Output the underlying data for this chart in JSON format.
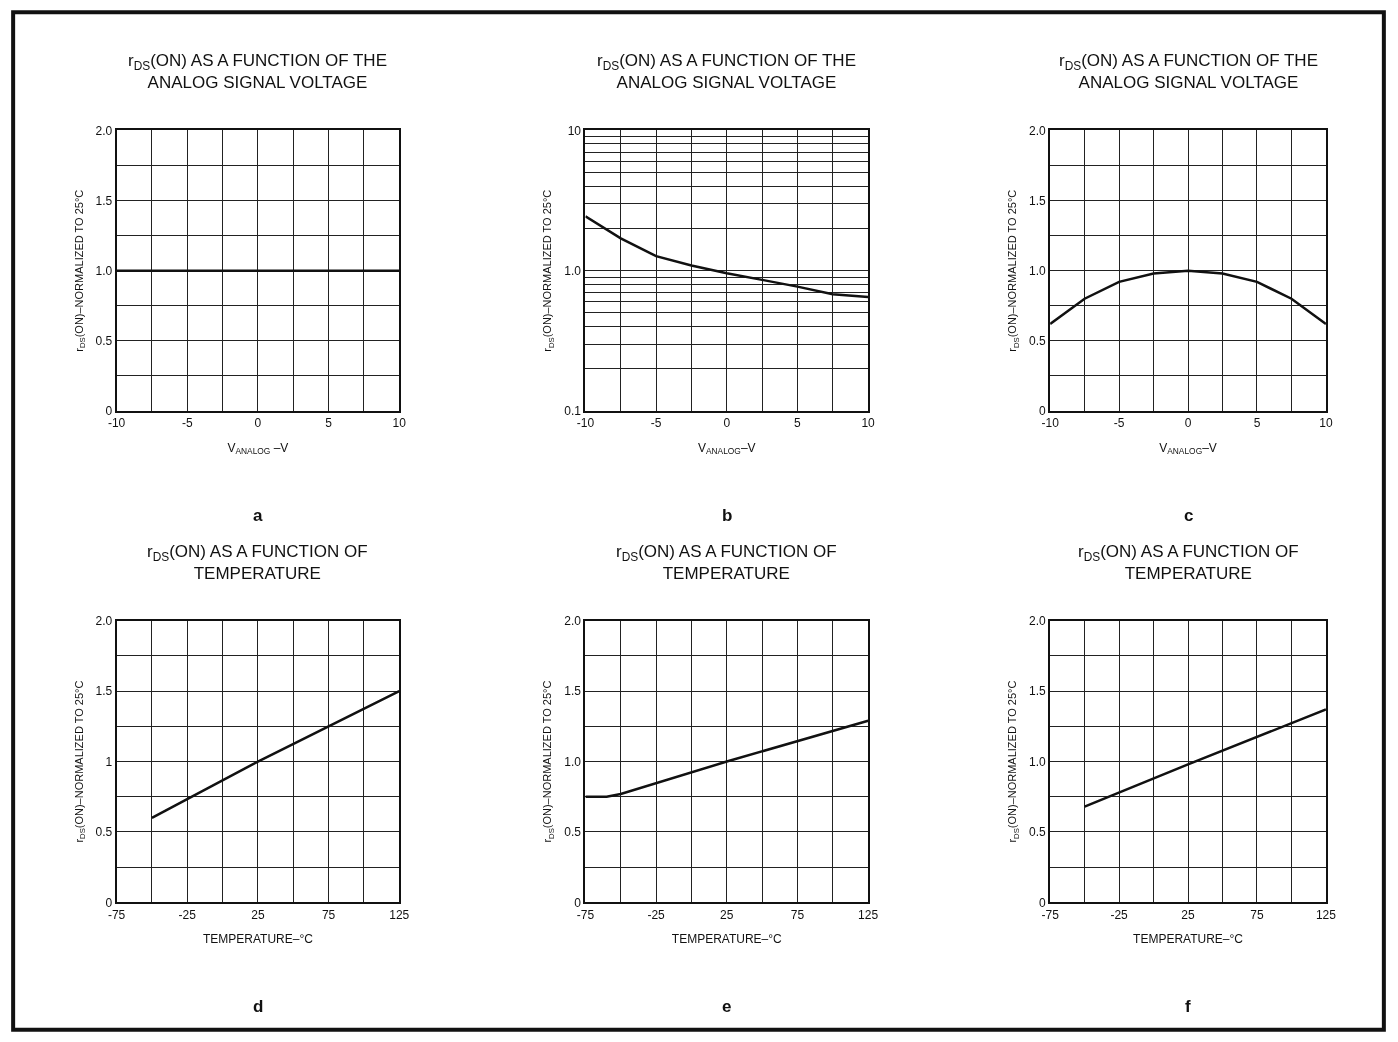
{
  "chart_data": [
    {
      "type": "line",
      "title": "r$_{DS}$(ON) AS A FUNCTION OF THE\nANALOG SIGNAL VOLTAGE",
      "xlabel": "V$_{ANALOG}$ –V",
      "ylabel": "r$_{DS}$(ON)–NORMALIZED TO 25°C",
      "annotations": [
        "a"
      ],
      "series": [
        {
          "color": "#111111",
          "x": [
            -10,
            10
          ],
          "values": [
            1.0,
            1.0
          ]
        }
      ],
      "xlim": [
        -10,
        10
      ],
      "xticks": [
        -10,
        {
          "value": -7.5,
          "label": null
        },
        -5,
        {
          "value": -2.5,
          "label": null
        },
        0,
        {
          "value": 2.5,
          "label": null
        },
        5,
        {
          "value": 7.5,
          "label": null
        },
        10
      ],
      "ylim": [
        0,
        2
      ],
      "yticks": [
        0,
        {
          "value": 0.25,
          "label": null
        },
        0.5,
        {
          "value": 0.75,
          "label": null
        },
        {
          "value": 1,
          "label": "1.0"
        },
        {
          "value": 1.25,
          "label": null
        },
        1.5,
        {
          "value": 1.75,
          "label": null
        },
        {
          "value": 2,
          "label": "2.0"
        }
      ],
      "grid": true
    },
    {
      "type": "line",
      "title": "r$_{DS}$(ON) AS A FUNCTION OF THE\nANALOG SIGNAL VOLTAGE",
      "xlabel": "V$_{ANALOG}$–V",
      "ylabel": "r$_{DS}$(ON)–NORMALIZED TO 25°C",
      "annotations": [
        "b"
      ],
      "log": true,
      "series": [
        {
          "color": "#111111",
          "x": [
            -10,
            -7.5,
            -5,
            -2.5,
            0,
            2.5,
            5,
            7.5,
            10
          ],
          "values": [
            2.44,
            1.7,
            1.27,
            1.09,
            0.96,
            0.86,
            0.77,
            0.68,
            0.65
          ]
        }
      ],
      "xlim": [
        -10,
        10
      ],
      "xticks": [
        -10,
        {
          "value": -7.5,
          "label": null
        },
        -5,
        {
          "value": -2.5,
          "label": null
        },
        0,
        {
          "value": 2.5,
          "label": null
        },
        5,
        {
          "value": 7.5,
          "label": null
        },
        10
      ],
      "ylim": [
        0.1,
        10
      ],
      "yticks": [
        0.1,
        {
          "value": 0.2,
          "label": null
        },
        {
          "value": 0.3,
          "label": null
        },
        {
          "value": 0.4,
          "label": null
        },
        {
          "value": 0.5,
          "label": null
        },
        {
          "value": 0.6,
          "label": null
        },
        {
          "value": 0.7,
          "label": null
        },
        {
          "value": 0.8,
          "label": null
        },
        {
          "value": 0.9,
          "label": null
        },
        {
          "value": 1,
          "label": "1.0"
        },
        {
          "value": 2,
          "label": null
        },
        {
          "value": 3,
          "label": null
        },
        {
          "value": 4,
          "label": null
        },
        {
          "value": 5,
          "label": null
        },
        {
          "value": 6,
          "label": null
        },
        {
          "value": 7,
          "label": null
        },
        {
          "value": 8,
          "label": null
        },
        {
          "value": 9,
          "label": null
        },
        10
      ],
      "grid": true
    },
    {
      "type": "line",
      "title": "r$_{DS}$(ON) AS A FUNCTION OF THE\nANALOG SIGNAL VOLTAGE",
      "xlabel": "V$_{ANALOG}$–V",
      "ylabel": "r$_{DS}$(ON)–NORMALIZED TO 25°C",
      "annotations": [
        "c"
      ],
      "series": [
        {
          "color": "#111111",
          "x": [
            -10,
            -7.5,
            -5,
            -2.5,
            0,
            2.5,
            5,
            7.5,
            10
          ],
          "values": [
            0.62,
            0.8,
            0.92,
            0.98,
            1.0,
            0.98,
            0.92,
            0.8,
            0.62
          ]
        }
      ],
      "xlim": [
        -10,
        10
      ],
      "xticks": [
        -10,
        {
          "value": -7.5,
          "label": null
        },
        -5,
        {
          "value": -2.5,
          "label": null
        },
        0,
        {
          "value": 2.5,
          "label": null
        },
        5,
        {
          "value": 7.5,
          "label": null
        },
        10
      ],
      "ylim": [
        0,
        2
      ],
      "yticks": [
        0,
        {
          "value": 0.25,
          "label": null
        },
        0.5,
        {
          "value": 0.75,
          "label": null
        },
        {
          "value": 1,
          "label": "1.0"
        },
        {
          "value": 1.25,
          "label": null
        },
        1.5,
        {
          "value": 1.75,
          "label": null
        },
        {
          "value": 2,
          "label": "2.0"
        }
      ],
      "grid": true
    },
    {
      "type": "line",
      "title": "r$_{DS}$(ON) AS A FUNCTION OF\nTEMPERATURE",
      "xlabel": "TEMPERATURE–°C",
      "ylabel": "r$_{DS}$(ON)–NORMALIZED TO 25°C",
      "annotations": [
        "d"
      ],
      "series": [
        {
          "color": "#111111",
          "x": [
            -50,
            25,
            125
          ],
          "values": [
            0.6,
            1.0,
            1.5
          ]
        }
      ],
      "xlim": [
        -75,
        125
      ],
      "xticks": [
        -75,
        {
          "value": -50,
          "label": null
        },
        -25,
        {
          "value": 0,
          "label": null
        },
        25,
        {
          "value": 50,
          "label": null
        },
        75,
        {
          "value": 100,
          "label": null
        },
        125
      ],
      "ylim": [
        0,
        2
      ],
      "yticks": [
        0,
        {
          "value": 0.25,
          "label": null
        },
        0.5,
        {
          "value": 0.75,
          "label": null
        },
        1,
        {
          "value": 1.25,
          "label": null
        },
        1.5,
        {
          "value": 1.75,
          "label": null
        },
        {
          "value": 2,
          "label": "2.0"
        }
      ],
      "grid": true
    },
    {
      "type": "line",
      "title": "r$_{DS}$(ON) AS A FUNCTION OF\nTEMPERATURE",
      "xlabel": "TEMPERATURE–°C",
      "ylabel": "r$_{DS}$(ON)–NORMALIZED TO 25°C",
      "annotations": [
        "e"
      ],
      "series": [
        {
          "color": "#111111",
          "x": [
            -75,
            -60,
            -50,
            25,
            125
          ],
          "values": [
            0.75,
            0.75,
            0.77,
            1.0,
            1.29
          ]
        }
      ],
      "xlim": [
        -75,
        125
      ],
      "xticks": [
        -75,
        {
          "value": -50,
          "label": null
        },
        -25,
        {
          "value": 0,
          "label": null
        },
        25,
        {
          "value": 50,
          "label": null
        },
        75,
        {
          "value": 100,
          "label": null
        },
        125
      ],
      "ylim": [
        0,
        2
      ],
      "yticks": [
        0,
        {
          "value": 0.25,
          "label": null
        },
        0.5,
        {
          "value": 0.75,
          "label": null
        },
        {
          "value": 1,
          "label": "1.0"
        },
        {
          "value": 1.25,
          "label": null
        },
        1.5,
        {
          "value": 1.75,
          "label": null
        },
        {
          "value": 2,
          "label": "2.0"
        }
      ],
      "grid": true
    },
    {
      "type": "line",
      "title": "r$_{DS}$(ON) AS A FUNCTION OF\nTEMPERATURE",
      "xlabel": "TEMPERATURE–°C",
      "ylabel": "r$_{DS}$(ON)–NORMALIZED TO 25°C",
      "annotations": [
        "f"
      ],
      "series": [
        {
          "color": "#111111",
          "x": [
            -50,
            25,
            125
          ],
          "values": [
            0.68,
            0.98,
            1.37
          ]
        }
      ],
      "xlim": [
        -75,
        125
      ],
      "xticks": [
        -75,
        {
          "value": -50,
          "label": null
        },
        -25,
        {
          "value": 0,
          "label": null
        },
        25,
        {
          "value": 50,
          "label": null
        },
        75,
        {
          "value": 100,
          "label": null
        },
        125
      ],
      "ylim": [
        0,
        2
      ],
      "yticks": [
        0,
        {
          "value": 0.25,
          "label": null
        },
        0.5,
        {
          "value": 0.75,
          "label": null
        },
        {
          "value": 1,
          "label": "1.0"
        },
        {
          "value": 1.25,
          "label": null
        },
        1.5,
        {
          "value": 1.75,
          "label": null
        },
        {
          "value": 2,
          "label": "2.0"
        }
      ],
      "grid": true
    }
  ]
}
